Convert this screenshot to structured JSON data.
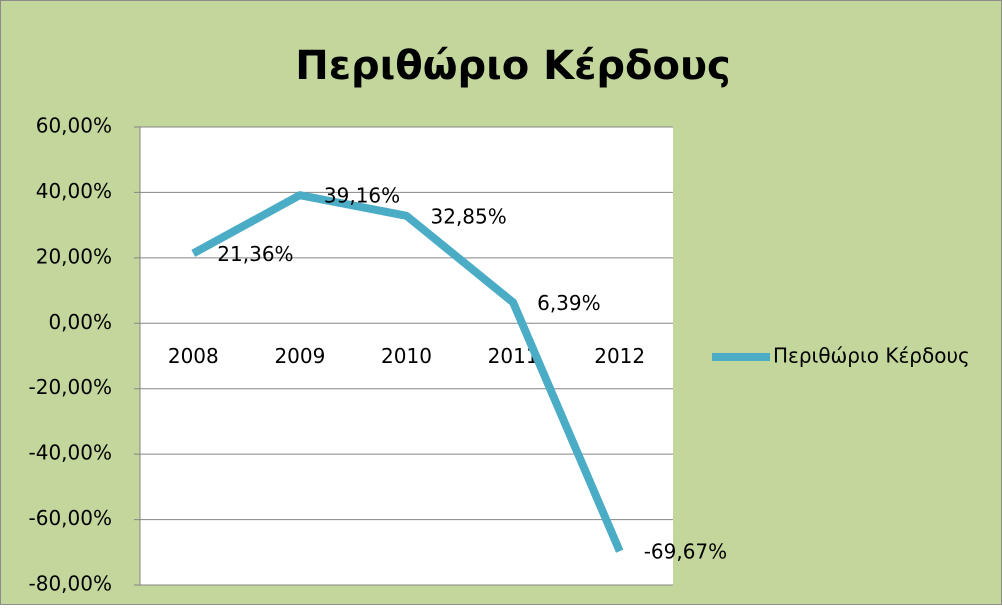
{
  "chart_data": {
    "type": "line",
    "title": "Περιθώριο Κέρδους",
    "categories": [
      "2008",
      "2009",
      "2010",
      "2011",
      "2012"
    ],
    "series": [
      {
        "name": "Περιθώριο Κέρδους",
        "color": "#4bacc6",
        "values": [
          21.36,
          39.16,
          32.85,
          6.39,
          -69.67
        ],
        "value_labels": [
          "21,36%",
          "39,16%",
          "32,85%",
          "6,39%",
          "-69,67%"
        ]
      }
    ],
    "ylim": [
      -80,
      60
    ],
    "yticks": [
      {
        "value": -80,
        "label": "-80,00%"
      },
      {
        "value": -60,
        "label": "-60,00%"
      },
      {
        "value": -40,
        "label": "-40,00%"
      },
      {
        "value": -20,
        "label": "-20,00%"
      },
      {
        "value": 0,
        "label": "0,00%"
      },
      {
        "value": 20,
        "label": "20,00%"
      },
      {
        "value": 40,
        "label": "40,00%"
      },
      {
        "value": 60,
        "label": "60,00%"
      }
    ],
    "grid": true,
    "legend": "right"
  }
}
